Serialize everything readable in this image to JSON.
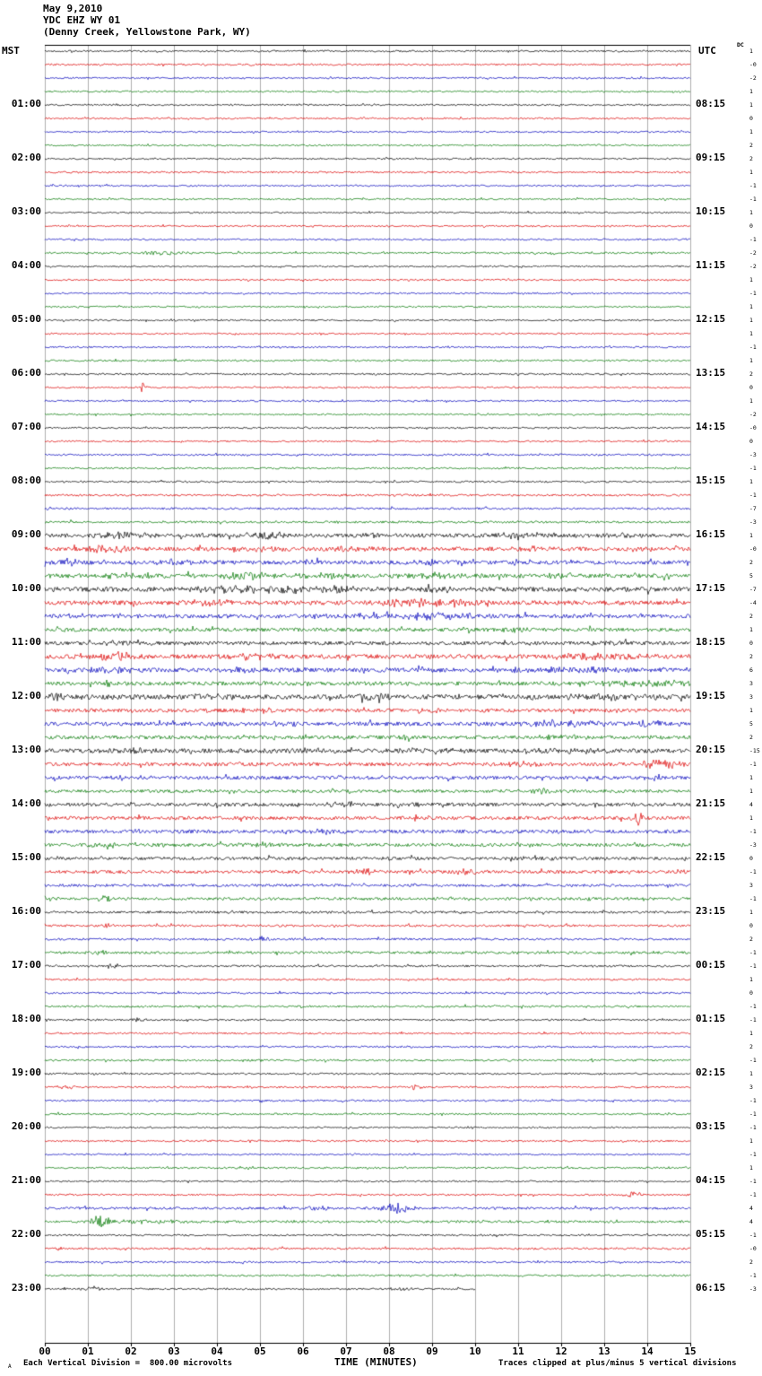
{
  "title": {
    "date": "May 9,2010",
    "station": "YDC EHZ WY 01",
    "location": "(Denny Creek, Yellowstone Park, WY)"
  },
  "axes": {
    "left_label": "MST",
    "right_label": "UTC",
    "dc_label": "DC",
    "x_title": "TIME (MINUTES)",
    "x_ticks": [
      "00",
      "01",
      "02",
      "03",
      "04",
      "05",
      "06",
      "07",
      "08",
      "09",
      "10",
      "11",
      "12",
      "13",
      "14",
      "15"
    ]
  },
  "left_times": [
    "01:00",
    "02:00",
    "03:00",
    "04:00",
    "05:00",
    "06:00",
    "07:00",
    "08:00",
    "09:00",
    "10:00",
    "11:00",
    "12:00",
    "13:00",
    "14:00",
    "15:00",
    "16:00",
    "17:00",
    "18:00",
    "19:00",
    "20:00",
    "21:00",
    "22:00",
    "23:00"
  ],
  "right_times": [
    "08:15",
    "09:15",
    "10:15",
    "11:15",
    "12:15",
    "13:15",
    "14:15",
    "15:15",
    "16:15",
    "17:15",
    "18:15",
    "19:15",
    "20:15",
    "21:15",
    "22:15",
    "23:15",
    "00:15",
    "01:15",
    "02:15",
    "03:15",
    "04:15",
    "05:15",
    "06:15"
  ],
  "dc_values": [
    "1",
    "-0",
    "-2",
    "1",
    "1",
    "0",
    "1",
    "2",
    "2",
    "1",
    "-1",
    "-1",
    "1",
    "0",
    "-1",
    "-2",
    "-2",
    "1",
    "-1",
    "1",
    "1",
    "1",
    "-1",
    "1",
    "2",
    "0",
    "1",
    "-2",
    "-0",
    "0",
    "-3",
    "-1",
    "1",
    "-1",
    "-7",
    "-3",
    "1",
    "-0",
    "2",
    "5",
    "-7",
    "-4",
    "2",
    "1",
    "0",
    "2",
    "6",
    "3",
    "3",
    "1",
    "5",
    "2",
    "-15",
    "-1",
    "1",
    "1",
    "4",
    "1",
    "-1",
    "-3",
    "0",
    "-1",
    "3",
    "-1",
    "1",
    "0",
    "2",
    "-1",
    "-1",
    "1",
    "0",
    "-1",
    "-1",
    "1",
    "2",
    "-1",
    "1",
    "3",
    "-1",
    "-1",
    "-1",
    "1",
    "-1",
    "1",
    "-1",
    "-1",
    "4",
    "4",
    "-1",
    "-0",
    "2",
    "-1",
    "-3"
  ],
  "footer": {
    "left": "Each Vertical Division =  800.00 microvolts",
    "right": "Traces clipped at plus/minus 5 vertical divisions",
    "mark": "A"
  },
  "chart_data": {
    "type": "line",
    "subtype": "seismogram-helicorder",
    "station": "YDC EHZ WY 01",
    "location": "Denny Creek, Yellowstone Park, WY",
    "date": "May 9,2010",
    "x_range_minutes": [
      0,
      15
    ],
    "minutes_per_line": 15,
    "lines_per_hour": 4,
    "volts_per_division": "800.00 microvolts",
    "clip": "plus/minus 5 vertical divisions",
    "colors": {
      "black": "#000000",
      "red": "#dd0000",
      "blue": "#0000bb",
      "green": "#007700"
    },
    "row_format": [
      "start_time_mst",
      "color",
      "noise_amp_px",
      "events[minute,amp_px,width_min]",
      "end_minute_optional"
    ],
    "rows": [
      [
        "00:00",
        "black",
        1,
        []
      ],
      [
        "00:15",
        "red",
        1,
        []
      ],
      [
        "00:30",
        "blue",
        0.9,
        []
      ],
      [
        "00:45",
        "green",
        0.9,
        []
      ],
      [
        "01:00",
        "black",
        0.9,
        []
      ],
      [
        "01:15",
        "red",
        0.9,
        []
      ],
      [
        "01:30",
        "blue",
        0.9,
        []
      ],
      [
        "01:45",
        "green",
        0.9,
        []
      ],
      [
        "02:00",
        "black",
        0.9,
        []
      ],
      [
        "02:15",
        "red",
        1,
        []
      ],
      [
        "02:30",
        "blue",
        0.9,
        []
      ],
      [
        "02:45",
        "green",
        0.9,
        []
      ],
      [
        "03:00",
        "black",
        0.9,
        []
      ],
      [
        "03:15",
        "red",
        0.9,
        []
      ],
      [
        "03:30",
        "blue",
        0.9,
        []
      ],
      [
        "03:45",
        "green",
        1,
        [
          [
            2.7,
            2.5,
            0.8
          ]
        ]
      ],
      [
        "04:00",
        "black",
        0.9,
        []
      ],
      [
        "04:15",
        "red",
        0.9,
        []
      ],
      [
        "04:30",
        "blue",
        0.9,
        []
      ],
      [
        "04:45",
        "green",
        0.9,
        []
      ],
      [
        "05:00",
        "black",
        0.9,
        []
      ],
      [
        "05:15",
        "red",
        0.9,
        []
      ],
      [
        "05:30",
        "blue",
        0.9,
        []
      ],
      [
        "05:45",
        "green",
        1,
        []
      ],
      [
        "06:00",
        "black",
        1,
        []
      ],
      [
        "06:15",
        "red",
        0.9,
        [
          [
            2.3,
            7,
            0.1
          ]
        ]
      ],
      [
        "06:30",
        "blue",
        0.9,
        []
      ],
      [
        "06:45",
        "green",
        0.9,
        []
      ],
      [
        "07:00",
        "black",
        0.9,
        []
      ],
      [
        "07:15",
        "red",
        0.9,
        []
      ],
      [
        "07:30",
        "blue",
        1,
        []
      ],
      [
        "07:45",
        "green",
        1,
        []
      ],
      [
        "08:00",
        "black",
        1,
        []
      ],
      [
        "08:15",
        "red",
        1.1,
        []
      ],
      [
        "08:30",
        "blue",
        1.1,
        []
      ],
      [
        "08:45",
        "green",
        1.2,
        []
      ],
      [
        "09:00",
        "black",
        2.2,
        [
          [
            1.7,
            3,
            1
          ],
          [
            5.2,
            2.5,
            0.8
          ],
          [
            7.6,
            2,
            0.6
          ],
          [
            11,
            2,
            0.8
          ],
          [
            13.6,
            2,
            0.6
          ]
        ]
      ],
      [
        "09:15",
        "red",
        2.2,
        [
          [
            1.5,
            4,
            0.6
          ],
          [
            5,
            2.5,
            0.8
          ],
          [
            7,
            2.5,
            0.8
          ],
          [
            11.5,
            2.5,
            0.8
          ],
          [
            13.8,
            2,
            0.5
          ]
        ]
      ],
      [
        "09:30",
        "blue",
        2.2,
        [
          [
            0.5,
            3,
            0.6
          ],
          [
            3.2,
            2.5,
            0.7
          ],
          [
            6,
            2,
            0.6
          ],
          [
            9,
            2,
            0.7
          ]
        ]
      ],
      [
        "09:45",
        "green",
        2.4,
        [
          [
            2,
            2.5,
            0.8
          ],
          [
            4.6,
            3,
            0.9
          ],
          [
            6.6,
            2.5,
            0.8
          ],
          [
            9,
            2.5,
            0.8
          ],
          [
            12,
            2,
            0.8
          ]
        ]
      ],
      [
        "10:00",
        "black",
        2.6,
        [
          [
            4.4,
            3.5,
            1.2
          ],
          [
            5.6,
            3,
            0.8
          ],
          [
            6.6,
            3.5,
            1
          ],
          [
            9,
            2.5,
            0.8
          ]
        ]
      ],
      [
        "10:15",
        "red",
        2.4,
        [
          [
            3.8,
            3,
            0.9
          ],
          [
            8.4,
            3.5,
            1.1
          ],
          [
            9.4,
            3,
            0.9
          ]
        ]
      ],
      [
        "10:30",
        "blue",
        2.2,
        [
          [
            7.6,
            2.5,
            0.8
          ],
          [
            8.6,
            3.5,
            1
          ],
          [
            9.6,
            2.5,
            0.8
          ]
        ]
      ],
      [
        "10:45",
        "green",
        2,
        [
          [
            11,
            2,
            0.7
          ]
        ]
      ],
      [
        "11:00",
        "black",
        2,
        [
          [
            1.5,
            2.5,
            0.7
          ],
          [
            13,
            2,
            0.7
          ]
        ]
      ],
      [
        "11:15",
        "red",
        2.4,
        [
          [
            1.7,
            4.5,
            0.6
          ],
          [
            4.9,
            3,
            0.7
          ],
          [
            12.5,
            3,
            0.9
          ],
          [
            13.6,
            2.5,
            0.7
          ]
        ]
      ],
      [
        "11:30",
        "blue",
        2.4,
        [
          [
            1.5,
            3,
            0.7
          ],
          [
            4.5,
            2.5,
            0.7
          ],
          [
            11.5,
            3,
            0.9
          ],
          [
            12.6,
            2.5,
            0.7
          ]
        ]
      ],
      [
        "11:45",
        "green",
        2.2,
        [
          [
            13.4,
            3.5,
            0.9
          ],
          [
            14.5,
            3,
            0.7
          ]
        ]
      ],
      [
        "12:00",
        "black",
        2.6,
        [
          [
            0.4,
            3,
            0.7
          ],
          [
            3.8,
            2.5,
            0.7
          ],
          [
            7.5,
            2.5,
            0.8
          ],
          [
            12.8,
            3,
            0.9
          ],
          [
            14.1,
            2.5,
            0.7
          ]
        ]
      ],
      [
        "12:15",
        "red",
        2,
        [
          [
            5,
            2,
            0.7
          ],
          [
            9,
            2,
            0.7
          ]
        ]
      ],
      [
        "12:30",
        "blue",
        2.2,
        [
          [
            5.5,
            2,
            0.7
          ],
          [
            11.8,
            3,
            0.8
          ],
          [
            12.6,
            2.5,
            0.7
          ],
          [
            14,
            2.5,
            0.7
          ]
        ]
      ],
      [
        "12:45",
        "green",
        2,
        [
          [
            8.4,
            5,
            0.15
          ],
          [
            12,
            2.5,
            0.8
          ]
        ]
      ],
      [
        "13:00",
        "black",
        2.4,
        [
          [
            2.1,
            2.5,
            0.7
          ],
          [
            6,
            2,
            0.7
          ],
          [
            9,
            2.5,
            0.8
          ],
          [
            11.6,
            2.5,
            0.8
          ],
          [
            12.6,
            2.5,
            0.7
          ]
        ]
      ],
      [
        "13:15",
        "red",
        2,
        [
          [
            11,
            2,
            0.7
          ],
          [
            14.2,
            4,
            0.5
          ],
          [
            14.7,
            3.5,
            0.4
          ]
        ]
      ],
      [
        "13:30",
        "blue",
        1.9,
        [
          [
            2,
            2,
            0.6
          ]
        ]
      ],
      [
        "13:45",
        "green",
        1.7,
        [
          [
            11.5,
            3.5,
            0.3
          ]
        ]
      ],
      [
        "14:00",
        "black",
        1.9,
        [
          [
            7,
            2.5,
            0.6
          ],
          [
            8.3,
            3,
            0.5
          ]
        ]
      ],
      [
        "14:15",
        "red",
        1.9,
        [
          [
            13.8,
            8,
            0.2
          ]
        ]
      ],
      [
        "14:30",
        "blue",
        2,
        [
          [
            6.5,
            2.5,
            0.7
          ]
        ]
      ],
      [
        "14:45",
        "green",
        1.9,
        [
          [
            1.5,
            2.5,
            0.7
          ],
          [
            5,
            2,
            0.6
          ]
        ]
      ],
      [
        "15:00",
        "black",
        1.7,
        [
          [
            11.5,
            2,
            0.6
          ]
        ]
      ],
      [
        "15:15",
        "red",
        1.7,
        [
          [
            7.4,
            3,
            0.4
          ],
          [
            9.8,
            3.5,
            0.4
          ],
          [
            14.8,
            3,
            0.3
          ]
        ]
      ],
      [
        "15:30",
        "blue",
        1.5,
        []
      ],
      [
        "15:45",
        "green",
        1.5,
        [
          [
            1.4,
            2.5,
            0.5
          ]
        ]
      ],
      [
        "16:00",
        "black",
        1.3,
        []
      ],
      [
        "16:15",
        "red",
        1.2,
        [
          [
            1.5,
            6,
            0.1
          ]
        ]
      ],
      [
        "16:30",
        "blue",
        1.2,
        [
          [
            5.1,
            2.5,
            0.4
          ]
        ]
      ],
      [
        "16:45",
        "green",
        1.4,
        [
          [
            1.2,
            4,
            0.3
          ]
        ]
      ],
      [
        "17:00",
        "black",
        1.1,
        [
          [
            1.6,
            2.5,
            0.3
          ]
        ]
      ],
      [
        "17:15",
        "red",
        1,
        []
      ],
      [
        "17:30",
        "blue",
        1,
        []
      ],
      [
        "17:45",
        "green",
        1.1,
        []
      ],
      [
        "18:00",
        "black",
        1,
        [
          [
            2.1,
            2.5,
            0.3
          ]
        ]
      ],
      [
        "18:15",
        "red",
        1,
        []
      ],
      [
        "18:30",
        "blue",
        1,
        []
      ],
      [
        "18:45",
        "green",
        1.1,
        []
      ],
      [
        "19:00",
        "black",
        1,
        []
      ],
      [
        "19:15",
        "red",
        1,
        [
          [
            0.5,
            2,
            0.4
          ],
          [
            8.6,
            3.5,
            0.2
          ]
        ]
      ],
      [
        "19:30",
        "blue",
        1,
        []
      ],
      [
        "19:45",
        "green",
        1,
        []
      ],
      [
        "20:00",
        "black",
        0.9,
        []
      ],
      [
        "20:15",
        "red",
        1,
        []
      ],
      [
        "20:30",
        "blue",
        0.9,
        []
      ],
      [
        "20:45",
        "green",
        1,
        []
      ],
      [
        "21:00",
        "black",
        0.9,
        []
      ],
      [
        "21:15",
        "red",
        1,
        [
          [
            13.7,
            3.5,
            0.3
          ]
        ]
      ],
      [
        "21:30",
        "blue",
        1.3,
        [
          [
            6.3,
            3,
            0.4
          ],
          [
            8.2,
            6,
            0.5
          ]
        ]
      ],
      [
        "21:45",
        "green",
        1.3,
        [
          [
            1.3,
            8,
            0.3
          ],
          [
            2.5,
            2,
            1.5
          ]
        ]
      ],
      [
        "22:00",
        "black",
        1,
        []
      ],
      [
        "22:15",
        "red",
        1.1,
        []
      ],
      [
        "22:30",
        "blue",
        1,
        []
      ],
      [
        "22:45",
        "green",
        1,
        []
      ],
      [
        "23:00",
        "black",
        1,
        [
          [
            1.1,
            2.5,
            0.4
          ],
          [
            8.3,
            2,
            0.4
          ]
        ],
        10
      ]
    ]
  }
}
